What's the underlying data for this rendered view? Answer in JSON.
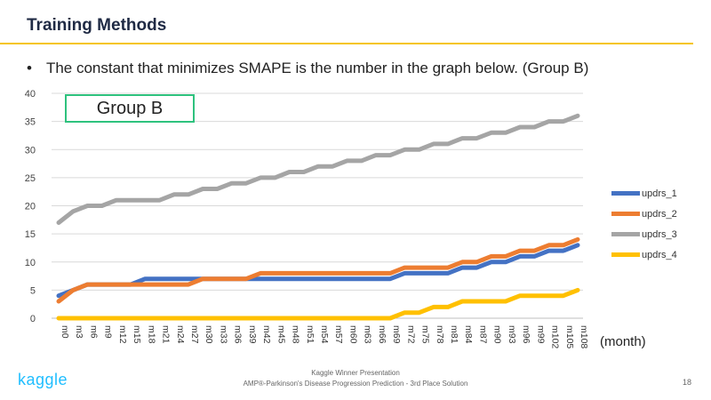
{
  "slide": {
    "title": "Training Methods",
    "bullet_symbol": "•",
    "bullet_text": "The constant that minimizes SMAPE is the number in the graph below. (Group B)",
    "group_label": "Group B",
    "x_unit_label": "(month)",
    "footer_logo": "kaggle",
    "footer_line1": "Kaggle Winner Presentation",
    "footer_line2": "AMP®-Parkinson's  Disease Progression Prediction  - 3rd Place Solution",
    "page_number": "18"
  },
  "colors": {
    "accent_rule": "#f5c518",
    "group_box": "#2ec27e",
    "updrs_1": "#4472c4",
    "updrs_2": "#ed7d31",
    "updrs_3": "#a5a5a5",
    "updrs_4": "#ffc000"
  },
  "chart_data": {
    "type": "line",
    "categories": [
      "m0",
      "m3",
      "m6",
      "m9",
      "m12",
      "m15",
      "m18",
      "m21",
      "m24",
      "m27",
      "m30",
      "m33",
      "m36",
      "m39",
      "m42",
      "m45",
      "m48",
      "m51",
      "m54",
      "m57",
      "m60",
      "m63",
      "m66",
      "m69",
      "m72",
      "m75",
      "m78",
      "m81",
      "m84",
      "m87",
      "m90",
      "m93",
      "m96",
      "m99",
      "m102",
      "m105",
      "m108"
    ],
    "ylim": [
      0,
      40
    ],
    "yticks": [
      0,
      5,
      10,
      15,
      20,
      25,
      30,
      35,
      40
    ],
    "grid": true,
    "legend_position": "right",
    "series": [
      {
        "name": "updrs_1",
        "color": "#4472c4",
        "values": [
          4,
          5,
          6,
          6,
          6,
          6,
          7,
          7,
          7,
          7,
          7,
          7,
          7,
          7,
          7,
          7,
          7,
          7,
          7,
          7,
          7,
          7,
          7,
          7,
          8,
          8,
          8,
          8,
          9,
          9,
          10,
          10,
          11,
          11,
          12,
          12,
          13
        ]
      },
      {
        "name": "updrs_2",
        "color": "#ed7d31",
        "values": [
          3,
          5,
          6,
          6,
          6,
          6,
          6,
          6,
          6,
          6,
          7,
          7,
          7,
          7,
          8,
          8,
          8,
          8,
          8,
          8,
          8,
          8,
          8,
          8,
          9,
          9,
          9,
          9,
          10,
          10,
          11,
          11,
          12,
          12,
          13,
          13,
          14
        ]
      },
      {
        "name": "updrs_3",
        "color": "#a5a5a5",
        "values": [
          17,
          19,
          20,
          20,
          21,
          21,
          21,
          21,
          22,
          22,
          23,
          23,
          24,
          24,
          25,
          25,
          26,
          26,
          27,
          27,
          28,
          28,
          29,
          29,
          30,
          30,
          31,
          31,
          32,
          32,
          33,
          33,
          34,
          34,
          35,
          35,
          36
        ]
      },
      {
        "name": "updrs_4",
        "color": "#ffc000",
        "values": [
          0,
          0,
          0,
          0,
          0,
          0,
          0,
          0,
          0,
          0,
          0,
          0,
          0,
          0,
          0,
          0,
          0,
          0,
          0,
          0,
          0,
          0,
          0,
          0,
          1,
          1,
          2,
          2,
          3,
          3,
          3,
          3,
          4,
          4,
          4,
          4,
          5
        ]
      }
    ]
  }
}
